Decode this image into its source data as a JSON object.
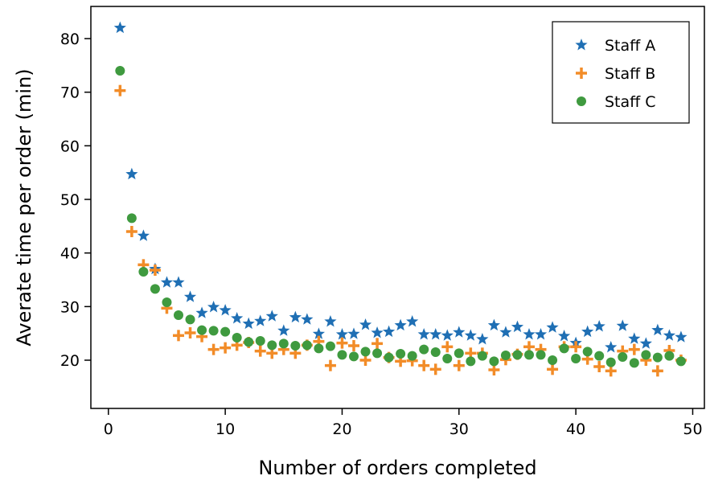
{
  "chart_data": {
    "type": "scatter",
    "xlabel": "Number of orders completed",
    "ylabel": "Averate time per order (min)",
    "xlim": [
      -1.5,
      51
    ],
    "ylim": [
      11,
      86
    ],
    "xticks": [
      0,
      10,
      20,
      30,
      40,
      50
    ],
    "yticks": [
      20,
      30,
      40,
      50,
      60,
      70,
      80
    ],
    "grid": false,
    "legend_position": "top-right",
    "series": [
      {
        "name": "Staff A",
        "marker": "star",
        "color": "#1f6fb4",
        "x": [
          1,
          2,
          3,
          4,
          5,
          6,
          7,
          8,
          9,
          10,
          11,
          12,
          13,
          14,
          15,
          16,
          17,
          18,
          19,
          20,
          21,
          22,
          23,
          24,
          25,
          26,
          27,
          28,
          29,
          30,
          31,
          32,
          33,
          34,
          35,
          36,
          37,
          38,
          39,
          40,
          41,
          42,
          43,
          44,
          45,
          46,
          47,
          48,
          49
        ],
        "y": [
          82,
          54.7,
          43.2,
          37,
          34.5,
          34.5,
          31.8,
          28.8,
          29.9,
          29.3,
          27.8,
          26.8,
          27.3,
          28.2,
          25.5,
          28,
          27.6,
          24.9,
          27.2,
          24.8,
          24.9,
          26.6,
          25.1,
          25.3,
          26.5,
          27.2,
          24.8,
          24.8,
          24.6,
          25.2,
          24.6,
          23.9,
          26.5,
          25.2,
          26.2,
          24.8,
          24.8,
          26.1,
          24.5,
          23.2,
          25.3,
          26.3,
          22.4,
          26.4,
          24,
          23.1,
          25.6,
          24.6,
          24.3
        ]
      },
      {
        "name": "Staff B",
        "marker": "plus",
        "color": "#f28c28",
        "x": [
          1,
          2,
          3,
          4,
          5,
          6,
          7,
          8,
          9,
          10,
          11,
          12,
          13,
          14,
          15,
          16,
          17,
          18,
          19,
          20,
          21,
          22,
          23,
          24,
          25,
          26,
          27,
          28,
          29,
          30,
          31,
          32,
          33,
          34,
          35,
          36,
          37,
          38,
          39,
          40,
          41,
          42,
          43,
          44,
          45,
          46,
          47,
          48,
          49
        ],
        "y": [
          70.3,
          44,
          37.8,
          36.8,
          29.7,
          24.6,
          25.1,
          24.4,
          22,
          22.3,
          22.8,
          23.3,
          21.7,
          21.3,
          22,
          21.3,
          22.8,
          23.5,
          19,
          23.2,
          22.7,
          20,
          23.1,
          20.5,
          19.8,
          19.9,
          19,
          18.3,
          22.5,
          19,
          21.3,
          21.3,
          18.2,
          20.1,
          21.1,
          22.5,
          22,
          18.3,
          22.5,
          22.5,
          20.2,
          18.8,
          18,
          21.7,
          22,
          20,
          18,
          21.8,
          20
        ]
      },
      {
        "name": "Staff C",
        "marker": "circle",
        "color": "#3f9a3f",
        "x": [
          1,
          2,
          3,
          4,
          5,
          6,
          7,
          8,
          9,
          10,
          11,
          12,
          13,
          14,
          15,
          16,
          17,
          18,
          19,
          20,
          21,
          22,
          23,
          24,
          25,
          26,
          27,
          28,
          29,
          30,
          31,
          32,
          33,
          34,
          35,
          36,
          37,
          38,
          39,
          40,
          41,
          42,
          43,
          44,
          45,
          46,
          47,
          48,
          49
        ],
        "y": [
          74,
          46.5,
          36.5,
          33.3,
          30.8,
          28.4,
          27.6,
          25.6,
          25.5,
          25.3,
          24.2,
          23.4,
          23.6,
          22.8,
          23.1,
          22.7,
          22.8,
          22.2,
          22.6,
          21,
          20.7,
          21.6,
          21.3,
          20.5,
          21.2,
          20.8,
          22,
          21.5,
          20.3,
          21.3,
          19.8,
          20.8,
          19.8,
          20.9,
          21,
          21,
          21,
          20,
          22.2,
          20.3,
          21.6,
          20.8,
          19.6,
          20.6,
          19.5,
          21,
          20.5,
          20.8,
          19.8
        ]
      }
    ]
  }
}
